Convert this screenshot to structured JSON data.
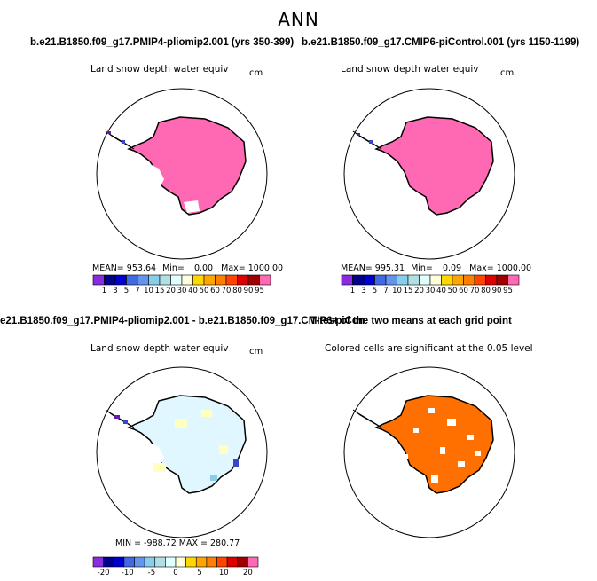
{
  "main_title": "ANN",
  "colors": {
    "bg_white": "#ffffff",
    "land_pink": "#ff69b4",
    "outline": "#000000",
    "diff_fill": "#e0f7ff",
    "diff_yellow": "#ffffc0",
    "sig_orange": "#ff7000",
    "coast_blue": "#3a46c8",
    "coast_purple": "#6a1ab0"
  },
  "panels": {
    "top_left": {
      "case_title": "b.e21.B1850.f09_g17.PMIP4-pliomip2.001 (yrs 350-399)",
      "variable": "Land snow depth water equiv",
      "unit": "cm",
      "stats": {
        "mean_label": "MEAN=",
        "mean": "953.64",
        "min_label": "Min=",
        "min": "0.00",
        "max_label": "Max=",
        "max": "1000.00"
      }
    },
    "top_right": {
      "case_title": "b.e21.B1850.f09_g17.CMIP6-piControl.001 (yrs 1150-1199)",
      "variable": "Land snow depth water equiv",
      "unit": "cm",
      "stats": {
        "mean_label": "MEAN=",
        "mean": "995.31",
        "min_label": "Min=",
        "min": "0.09",
        "max_label": "Max=",
        "max": "1000.00"
      }
    },
    "bottom_left": {
      "case_title": "e21.B1850.f09_g17.PMIP4-pliomip2.001 - b.e21.B1850.f09_g17.CMIP6-piControl.001",
      "variable": "Land snow depth water equiv",
      "unit": "cm",
      "stats_text": "MIN = -988.72  MAX = 280.77"
    },
    "bottom_right": {
      "case_title": "T-test of the two means at each grid point",
      "variable": "Colored cells are significant at the 0.05 level"
    }
  },
  "colorbar_abs": {
    "labels": [
      "1",
      "3",
      "5",
      "7",
      "10",
      "15",
      "20",
      "30",
      "40",
      "50",
      "60",
      "70",
      "80",
      "90",
      "95"
    ],
    "colors": [
      "#8a2be2",
      "#00008b",
      "#0000cd",
      "#4169e1",
      "#6495ed",
      "#87ceeb",
      "#b0e0e6",
      "#e0ffff",
      "#ffffe0",
      "#ffd700",
      "#ffa500",
      "#ff7f00",
      "#ff4500",
      "#dc0000",
      "#a00000",
      "#ff69b4"
    ]
  },
  "colorbar_diff": {
    "labels": [
      "-20",
      "-10",
      "-5",
      "0",
      "5",
      "10",
      "20"
    ],
    "colors": [
      "#8a2be2",
      "#00008b",
      "#0000cd",
      "#4169e1",
      "#6495ed",
      "#87ceeb",
      "#b0e0e6",
      "#e0ffff",
      "#ffffe0",
      "#ffd700",
      "#ffa500",
      "#ff7f00",
      "#ff4500",
      "#dc0000",
      "#a00000",
      "#ff69b4"
    ]
  }
}
